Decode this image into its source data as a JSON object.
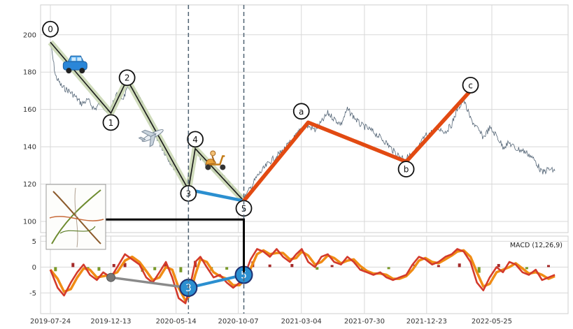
{
  "chart_data": [
    {
      "type": "line",
      "panel": "price",
      "grid": true,
      "ylim": [
        94,
        216
      ],
      "xlim": [
        "2019-07-01",
        "2022-11-20"
      ],
      "y_ticks": [
        100,
        120,
        140,
        160,
        180,
        200
      ],
      "series": [
        {
          "style": "thin-price-line",
          "color": "#556677",
          "points": [
            [
              "2019-07-24",
              196
            ],
            [
              "2019-08-05",
              178
            ],
            [
              "2019-08-20",
              172
            ],
            [
              "2019-09-05",
              170
            ],
            [
              "2019-09-20",
              167
            ],
            [
              "2019-10-05",
              163
            ],
            [
              "2019-10-20",
              165
            ],
            [
              "2019-11-05",
              160
            ],
            [
              "2019-11-20",
              164
            ],
            [
              "2019-12-05",
              158
            ],
            [
              "2019-12-13",
              160
            ],
            [
              "2019-12-25",
              168
            ],
            [
              "2020-01-10",
              166
            ],
            [
              "2020-01-25",
              172
            ],
            [
              "2020-02-05",
              170
            ],
            [
              "2020-02-20",
              165
            ],
            [
              "2020-03-05",
              158
            ],
            [
              "2020-03-20",
              150
            ],
            [
              "2020-04-05",
              142
            ],
            [
              "2020-04-20",
              136
            ],
            [
              "2020-05-05",
              130
            ],
            [
              "2020-05-20",
              126
            ],
            [
              "2020-06-05",
              118
            ],
            [
              "2020-06-12",
              122
            ],
            [
              "2020-06-20",
              128
            ],
            [
              "2020-06-28",
              140
            ],
            [
              "2020-07-10",
              134
            ],
            [
              "2020-07-25",
              130
            ],
            [
              "2020-08-10",
              128
            ],
            [
              "2020-08-25",
              126
            ],
            [
              "2020-09-10",
              122
            ],
            [
              "2020-09-25",
              118
            ],
            [
              "2020-10-10",
              113
            ],
            [
              "2020-10-20",
              112
            ],
            [
              "2020-11-05",
              118
            ],
            [
              "2020-11-20",
              124
            ],
            [
              "2020-12-05",
              128
            ],
            [
              "2020-12-20",
              132
            ],
            [
              "2021-01-05",
              135
            ],
            [
              "2021-01-20",
              138
            ],
            [
              "2021-02-05",
              142
            ],
            [
              "2021-02-20",
              146
            ],
            [
              "2021-03-05",
              150
            ],
            [
              "2021-03-20",
              151
            ],
            [
              "2021-04-05",
              149
            ],
            [
              "2021-04-20",
              153
            ],
            [
              "2021-05-05",
              158
            ],
            [
              "2021-05-20",
              155
            ],
            [
              "2021-06-05",
              152
            ],
            [
              "2021-06-20",
              160
            ],
            [
              "2021-07-05",
              156
            ],
            [
              "2021-07-20",
              152
            ],
            [
              "2021-08-05",
              150
            ],
            [
              "2021-08-20",
              148
            ],
            [
              "2021-09-05",
              145
            ],
            [
              "2021-09-20",
              142
            ],
            [
              "2021-10-05",
              138
            ],
            [
              "2021-10-20",
              135
            ],
            [
              "2021-11-05",
              134
            ],
            [
              "2021-11-20",
              136
            ],
            [
              "2021-12-05",
              140
            ],
            [
              "2021-12-20",
              146
            ],
            [
              "2022-01-05",
              148
            ],
            [
              "2022-01-20",
              150
            ],
            [
              "2022-02-05",
              148
            ],
            [
              "2022-02-20",
              152
            ],
            [
              "2022-03-05",
              160
            ],
            [
              "2022-03-20",
              165
            ],
            [
              "2022-04-05",
              155
            ],
            [
              "2022-04-20",
              150
            ],
            [
              "2022-05-05",
              145
            ],
            [
              "2022-05-20",
              150
            ],
            [
              "2022-06-05",
              146
            ],
            [
              "2022-06-20",
              140
            ],
            [
              "2022-07-05",
              142
            ],
            [
              "2022-07-20",
              139
            ],
            [
              "2022-08-05",
              138
            ],
            [
              "2022-08-20",
              136
            ],
            [
              "2022-09-05",
              132
            ],
            [
              "2022-09-20",
              126
            ],
            [
              "2022-10-05",
              128
            ],
            [
              "2022-10-20",
              127
            ]
          ]
        },
        {
          "style": "impulse-wave-highlight",
          "color": "#c8d6b0",
          "points": [
            [
              "2019-07-24",
              196
            ],
            [
              "2019-12-13",
              158
            ],
            [
              "2020-01-20",
              176
            ],
            [
              "2020-06-12",
              117
            ],
            [
              "2020-06-28",
              139
            ],
            [
              "2020-10-20",
              111
            ]
          ]
        },
        {
          "style": "impulse-wave-line",
          "color": "#1a1a1a",
          "points": [
            [
              "2019-07-24",
              196
            ],
            [
              "2019-12-13",
              158
            ],
            [
              "2020-01-20",
              176
            ],
            [
              "2020-06-12",
              117
            ],
            [
              "2020-06-28",
              139
            ],
            [
              "2020-10-20",
              111
            ]
          ]
        },
        {
          "style": "wave-3-5-connector",
          "color": "#2b8fd0",
          "points": [
            [
              "2020-06-12",
              117
            ],
            [
              "2020-10-20",
              111
            ]
          ]
        },
        {
          "style": "corrective-wave-line",
          "color": "#e24a12",
          "points": [
            [
              "2020-10-20",
              111
            ],
            [
              "2021-03-20",
              153
            ],
            [
              "2021-11-05",
              132
            ],
            [
              "2022-04-05",
              170
            ]
          ]
        }
      ],
      "wave_labels": [
        {
          "label": "0",
          "x": "2019-07-24",
          "y": 203
        },
        {
          "label": "1",
          "x": "2019-12-13",
          "y": 153
        },
        {
          "label": "2",
          "x": "2020-01-20",
          "y": 177
        },
        {
          "label": "3",
          "x": "2020-06-12",
          "y": 115
        },
        {
          "label": "4",
          "x": "2020-06-28",
          "y": 144
        },
        {
          "label": "5",
          "x": "2020-10-20",
          "y": 107
        },
        {
          "label": "a",
          "x": "2021-03-04",
          "y": 159
        },
        {
          "label": "b",
          "x": "2021-11-05",
          "y": 128
        },
        {
          "label": "c",
          "x": "2022-04-05",
          "y": 173
        }
      ],
      "vertical_markers": [
        "2020-06-12",
        "2020-10-20"
      ],
      "icons": [
        {
          "name": "car-icon",
          "x": "2019-09-20",
          "y": 183
        },
        {
          "name": "airplane-icon",
          "x": "2020-03-20",
          "y": 146
        },
        {
          "name": "scooter-icon",
          "x": "2020-08-15",
          "y": 132
        }
      ]
    },
    {
      "type": "bar+line",
      "panel": "macd",
      "legend": "MACD (12,26,9)",
      "legend_position": "top-right",
      "grid": true,
      "ylim": [
        -9,
        6
      ],
      "xlim": [
        "2019-07-01",
        "2022-11-20"
      ],
      "y_ticks": [
        -5,
        0,
        5
      ],
      "x_tick_labels": [
        "2019-07-24",
        "2019-12-13",
        "2020-05-14",
        "2020-10-07",
        "2021-03-04",
        "2021-07-30",
        "2021-12-23",
        "2022-05-25"
      ],
      "macd_line": [
        [
          "2019-07-24",
          -0.5
        ],
        [
          "2019-08-10",
          -4
        ],
        [
          "2019-08-25",
          -5.5
        ],
        [
          "2019-09-10",
          -3
        ],
        [
          "2019-09-25",
          -1
        ],
        [
          "2019-10-10",
          0.5
        ],
        [
          "2019-10-25",
          -1.5
        ],
        [
          "2019-11-10",
          -2.5
        ],
        [
          "2019-11-25",
          -1
        ],
        [
          "2019-12-13",
          -2
        ],
        [
          "2019-12-28",
          0
        ],
        [
          "2020-01-15",
          2.5
        ],
        [
          "2020-02-01",
          1.5
        ],
        [
          "2020-02-18",
          0.5
        ],
        [
          "2020-03-05",
          -2
        ],
        [
          "2020-03-20",
          -3
        ],
        [
          "2020-04-05",
          -1
        ],
        [
          "2020-04-20",
          1
        ],
        [
          "2020-05-05",
          -2
        ],
        [
          "2020-05-20",
          -6
        ],
        [
          "2020-06-05",
          -7
        ],
        [
          "2020-06-15",
          -4
        ],
        [
          "2020-06-28",
          1
        ],
        [
          "2020-07-10",
          2
        ],
        [
          "2020-07-25",
          0
        ],
        [
          "2020-08-10",
          -2
        ],
        [
          "2020-08-25",
          -1.5
        ],
        [
          "2020-09-10",
          -3
        ],
        [
          "2020-09-25",
          -4
        ],
        [
          "2020-10-10",
          -3
        ],
        [
          "2020-10-20",
          -2
        ],
        [
          "2020-11-05",
          1.5
        ],
        [
          "2020-11-20",
          3.5
        ],
        [
          "2020-12-05",
          3
        ],
        [
          "2020-12-20",
          2
        ],
        [
          "2021-01-05",
          3.5
        ],
        [
          "2021-01-20",
          2
        ],
        [
          "2021-02-05",
          1
        ],
        [
          "2021-02-20",
          2.5
        ],
        [
          "2021-03-05",
          3.5
        ],
        [
          "2021-03-20",
          1
        ],
        [
          "2021-04-05",
          0
        ],
        [
          "2021-04-20",
          2
        ],
        [
          "2021-05-05",
          2.5
        ],
        [
          "2021-05-20",
          1
        ],
        [
          "2021-06-05",
          0.5
        ],
        [
          "2021-06-20",
          2
        ],
        [
          "2021-07-05",
          1
        ],
        [
          "2021-07-20",
          -0.5
        ],
        [
          "2021-08-05",
          -1
        ],
        [
          "2021-08-20",
          -1.5
        ],
        [
          "2021-09-05",
          -1
        ],
        [
          "2021-09-20",
          -2
        ],
        [
          "2021-10-05",
          -2.5
        ],
        [
          "2021-10-20",
          -2
        ],
        [
          "2021-11-05",
          -1.5
        ],
        [
          "2021-11-20",
          0.5
        ],
        [
          "2021-12-05",
          2
        ],
        [
          "2021-12-20",
          1.5
        ],
        [
          "2022-01-05",
          0.5
        ],
        [
          "2022-01-20",
          1
        ],
        [
          "2022-02-05",
          2
        ],
        [
          "2022-02-20",
          2.5
        ],
        [
          "2022-03-05",
          3.5
        ],
        [
          "2022-03-20",
          3
        ],
        [
          "2022-04-05",
          1
        ],
        [
          "2022-04-20",
          -3
        ],
        [
          "2022-05-05",
          -4.5
        ],
        [
          "2022-05-20",
          -2
        ],
        [
          "2022-06-05",
          0
        ],
        [
          "2022-06-20",
          -1
        ],
        [
          "2022-07-05",
          1
        ],
        [
          "2022-07-20",
          0.5
        ],
        [
          "2022-08-05",
          -1
        ],
        [
          "2022-08-20",
          -1.5
        ],
        [
          "2022-09-05",
          -0.5
        ],
        [
          "2022-09-20",
          -2.5
        ],
        [
          "2022-10-05",
          -2
        ],
        [
          "2022-10-20",
          -1.5
        ]
      ],
      "histogram_bars": [
        [
          "2019-08-05",
          -0.8
        ],
        [
          "2019-09-15",
          0.8
        ],
        [
          "2019-10-20",
          -0.5
        ],
        [
          "2019-11-15",
          -0.7
        ],
        [
          "2019-12-20",
          0.6
        ],
        [
          "2020-01-15",
          0.8
        ],
        [
          "2020-02-25",
          -0.9
        ],
        [
          "2020-03-25",
          -0.6
        ],
        [
          "2020-04-20",
          0.7
        ],
        [
          "2020-05-25",
          -1.0
        ],
        [
          "2020-06-28",
          1.2
        ],
        [
          "2020-08-05",
          -0.7
        ],
        [
          "2020-09-10",
          -0.5
        ],
        [
          "2020-11-10",
          1.1
        ],
        [
          "2020-12-20",
          0.5
        ],
        [
          "2021-02-10",
          0.6
        ],
        [
          "2021-04-10",
          -0.5
        ],
        [
          "2021-05-15",
          0.4
        ],
        [
          "2021-07-25",
          -0.5
        ],
        [
          "2021-09-25",
          -0.4
        ],
        [
          "2021-11-25",
          0.5
        ],
        [
          "2022-01-20",
          0.4
        ],
        [
          "2022-03-10",
          0.7
        ],
        [
          "2022-04-25",
          -1.1
        ],
        [
          "2022-06-10",
          0.6
        ],
        [
          "2022-08-15",
          -0.4
        ],
        [
          "2022-10-05",
          0.4
        ]
      ],
      "wave_markers": [
        {
          "label": "",
          "x": "2019-12-13",
          "y": -2,
          "color": "#888888"
        },
        {
          "label": "3",
          "x": "2020-06-12",
          "y": -4,
          "color": "#2b8fd0"
        },
        {
          "label": "5",
          "x": "2020-10-20",
          "y": -1.5,
          "color": "#2b8fd0"
        }
      ]
    }
  ],
  "colors": {
    "price_line": "#556677",
    "macd_line": "#d33a2c",
    "signal_line": "#f08c14",
    "hist_positive": "#a52a2a",
    "hist_negative": "#7a9a2a",
    "grid": "#d8d8d8"
  }
}
